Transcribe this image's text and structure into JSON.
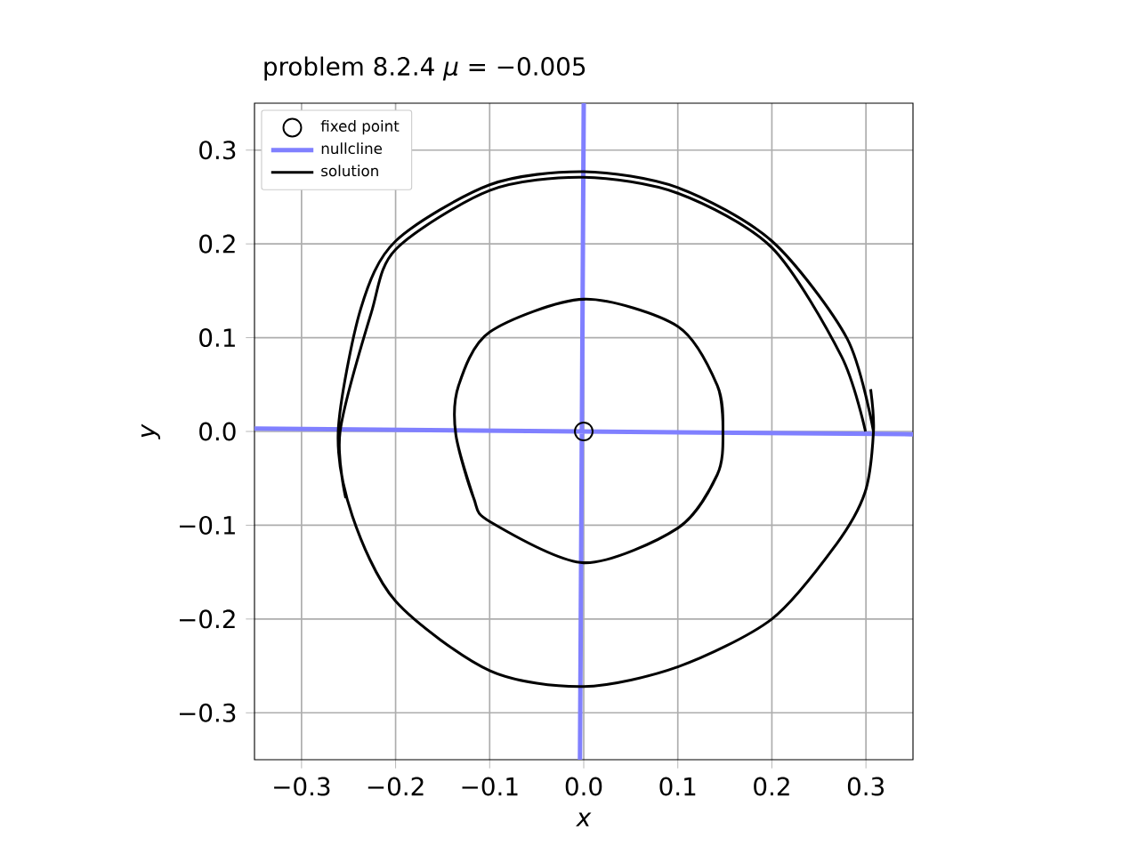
{
  "chart_data": {
    "type": "line",
    "title": "problem 8.2.4 *μ* = −0.005",
    "xlabel": "x",
    "ylabel": "y",
    "xlim": [
      -0.35,
      0.35
    ],
    "ylim": [
      -0.35,
      0.35
    ],
    "xticks": [
      {
        "value": -0.3,
        "label": "−0.3"
      },
      {
        "value": -0.2,
        "label": "−0.2"
      },
      {
        "value": -0.1,
        "label": "−0.1"
      },
      {
        "value": 0,
        "label": "0.0"
      },
      0.1,
      0.2,
      0.3
    ],
    "yticks": [
      {
        "value": -0.3,
        "label": "−0.3"
      },
      {
        "value": -0.2,
        "label": "−0.2"
      },
      {
        "value": -0.1,
        "label": "−0.1"
      },
      {
        "value": 0,
        "label": "0.0"
      },
      0.1,
      0.2,
      0.3
    ],
    "grid": true,
    "legend": "top left",
    "series": [
      {
        "name": "fixed point",
        "type": "scatter",
        "marker": "circle",
        "color": "#000000",
        "x": [
          0.0
        ],
        "values": [
          0.0
        ]
      },
      {
        "name": "nullcline",
        "color": "#8080ff",
        "x": [
          0.0,
          -0.004,
          null,
          -0.35,
          0.35
        ],
        "values": [
          0.35,
          -0.35,
          null,
          0.003,
          -0.003
        ]
      },
      {
        "name": "solution",
        "color": "#000000",
        "x": [
          0.308,
          0.28,
          0.2,
          0.1,
          0.0,
          -0.1,
          -0.2,
          -0.237,
          -0.261,
          -0.246,
          -0.2,
          -0.1,
          0.0,
          0.1,
          0.2,
          0.268,
          0.299,
          0.308,
          0.305,
          null,
          -0.253,
          -0.259,
          -0.226,
          -0.2,
          -0.1,
          0.0,
          0.1,
          0.2,
          0.274,
          0.2995,
          null,
          0.148,
          0.142,
          0.1,
          0.0,
          -0.1,
          -0.133,
          -0.136,
          -0.117,
          -0.1,
          0.0,
          0.1,
          0.142,
          0.148,
          0.142,
          0.1,
          0.0,
          -0.1,
          -0.133,
          -0.136,
          -0.117
        ],
        "values": [
          0.0,
          0.099,
          0.203,
          0.26,
          0.277,
          0.263,
          0.203,
          0.131,
          0.0,
          -0.09,
          -0.181,
          -0.255,
          -0.272,
          -0.251,
          -0.2,
          -0.121,
          -0.065,
          0.0,
          0.045,
          null,
          -0.071,
          0.0,
          0.126,
          0.194,
          0.257,
          0.271,
          0.254,
          0.196,
          0.08,
          0.0,
          null,
          0.0,
          0.049,
          0.112,
          0.141,
          0.106,
          0.049,
          -0.003,
          -0.071,
          -0.096,
          -0.14,
          -0.103,
          -0.046,
          0.0,
          0.049,
          0.112,
          0.141,
          0.106,
          0.049,
          -0.003,
          -0.071
        ]
      }
    ]
  }
}
